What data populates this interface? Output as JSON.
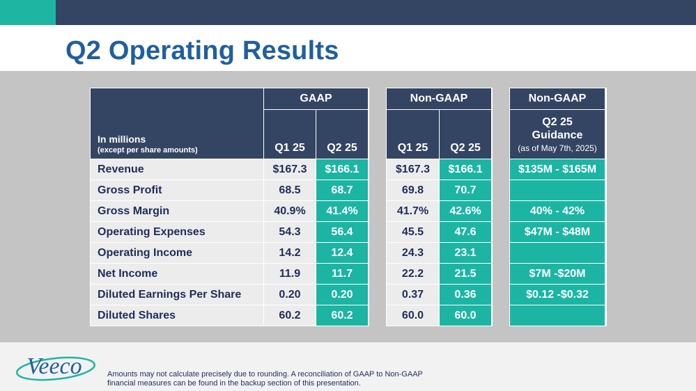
{
  "slide": {
    "title": "Q2 Operating Results"
  },
  "table": {
    "label_header_line1": "In millions",
    "label_header_line2": "(except per share amounts)",
    "gaap": {
      "group": "GAAP",
      "col1": "Q1 25",
      "col2": "Q2 25"
    },
    "nongaap": {
      "group": "Non-GAAP",
      "col1": "Q1 25",
      "col2": "Q2 25"
    },
    "guidance": {
      "group": "Non-GAAP",
      "line1": "Q2 25",
      "line2": "Guidance",
      "line3": "(as of May 7th, 2025)"
    },
    "rows": [
      {
        "label": "Revenue",
        "gaap_q1": "$167.3",
        "gaap_q2": "$166.1",
        "ng_q1": "$167.3",
        "ng_q2": "$166.1",
        "guidance": "$135M - $165M"
      },
      {
        "label": "Gross Profit",
        "gaap_q1": "68.5",
        "gaap_q2": "68.7",
        "ng_q1": "69.8",
        "ng_q2": "70.7",
        "guidance": ""
      },
      {
        "label": "Gross Margin",
        "gaap_q1": "40.9%",
        "gaap_q2": "41.4%",
        "ng_q1": "41.7%",
        "ng_q2": "42.6%",
        "guidance": "40% - 42%"
      },
      {
        "label": "Operating Expenses",
        "gaap_q1": "54.3",
        "gaap_q2": "56.4",
        "ng_q1": "45.5",
        "ng_q2": "47.6",
        "guidance": "$47M - $48M"
      },
      {
        "label": "Operating Income",
        "gaap_q1": "14.2",
        "gaap_q2": "12.4",
        "ng_q1": "24.3",
        "ng_q2": "23.1",
        "guidance": ""
      },
      {
        "label": "Net Income",
        "gaap_q1": "11.9",
        "gaap_q2": "11.7",
        "ng_q1": "22.2",
        "ng_q2": "21.5",
        "guidance": "$7M -$20M"
      },
      {
        "label": "Diluted Earnings Per Share",
        "gaap_q1": "0.20",
        "gaap_q2": "0.20",
        "ng_q1": "0.37",
        "ng_q2": "0.36",
        "guidance": "$0.12 -$0.32"
      },
      {
        "label": "Diluted Shares",
        "gaap_q1": "60.2",
        "gaap_q2": "60.2",
        "ng_q1": "60.0",
        "ng_q2": "60.0",
        "guidance": ""
      }
    ]
  },
  "footer": {
    "logo_text": "Veeco",
    "note_line1": "Amounts may not calculate precisely due to rounding.  A reconciliation of GAAP to Non-GAAP",
    "note_line2": "financial measures can be found in the backup section of this presentation."
  },
  "colors": {
    "navy": "#344563",
    "teal": "#1cb5a3",
    "title_blue": "#1f5fa0",
    "row_gray": "#ececec"
  }
}
